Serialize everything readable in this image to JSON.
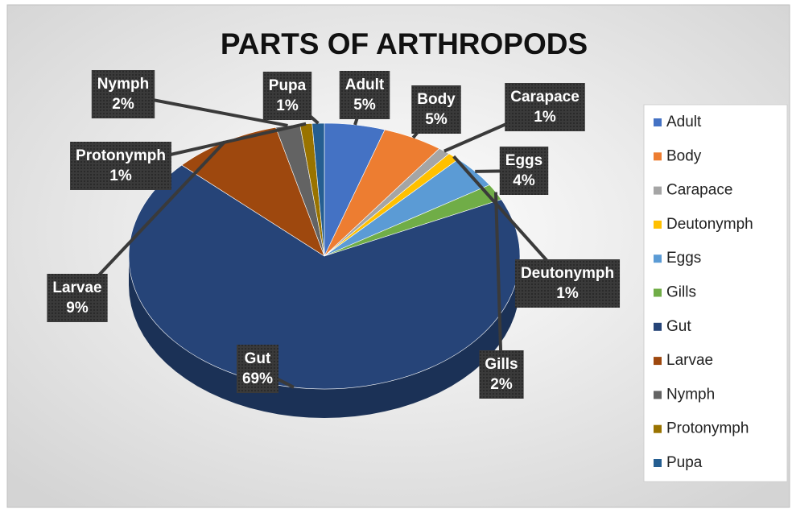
{
  "chart_data": {
    "type": "pie",
    "title": "PARTS OF ARTHROPODS",
    "categories": [
      "Adult",
      "Body",
      "Carapace",
      "Deutonymph",
      "Eggs",
      "Gills",
      "Gut",
      "Larvae",
      "Nymph",
      "Protonymph",
      "Pupa"
    ],
    "values": [
      5,
      5,
      1,
      1,
      4,
      2,
      69,
      9,
      2,
      1,
      1
    ],
    "value_labels": [
      "5%",
      "5%",
      "1%",
      "1%",
      "4%",
      "2%",
      "69%",
      "9%",
      "2%",
      "1%",
      "1%"
    ],
    "colors": [
      "#4472c4",
      "#ed7d31",
      "#a5a5a5",
      "#ffc000",
      "#5b9bd5",
      "#70ad47",
      "#264478",
      "#9e480e",
      "#636363",
      "#997300",
      "#255e91"
    ],
    "legend": "right"
  }
}
